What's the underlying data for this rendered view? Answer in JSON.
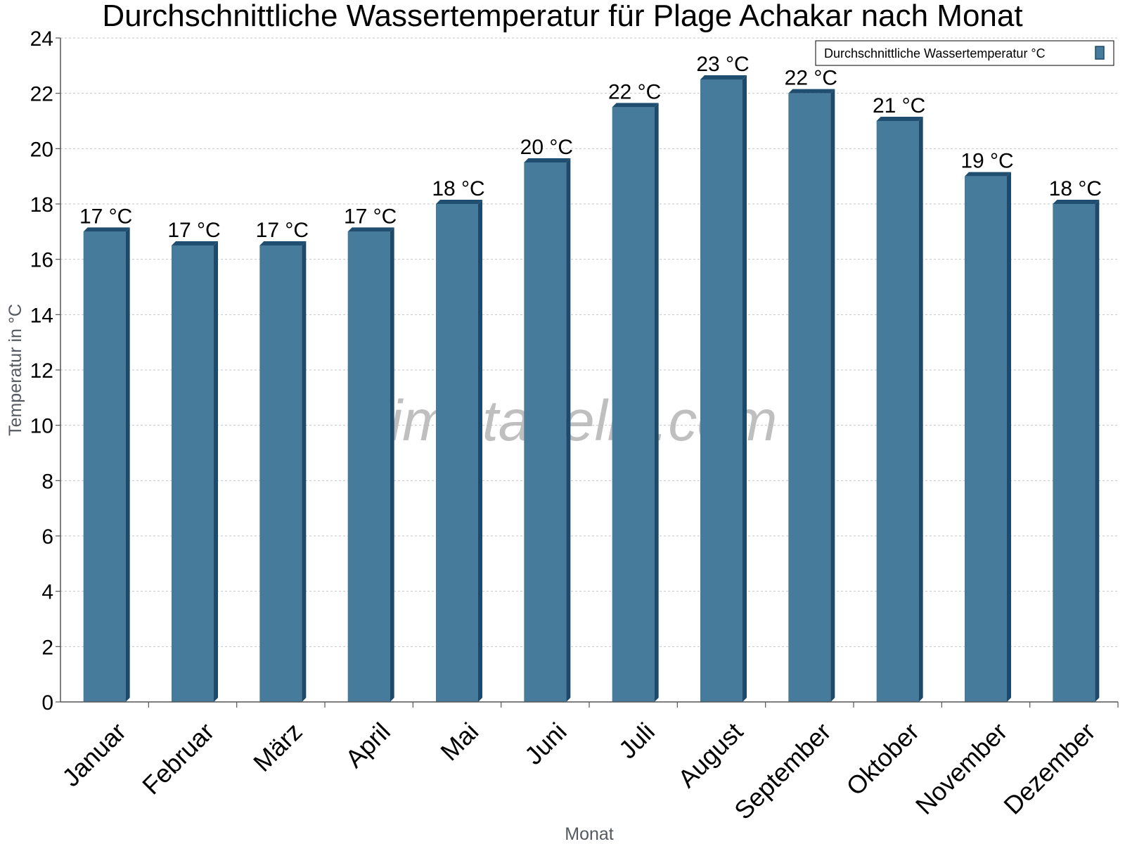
{
  "chart_data": {
    "type": "bar",
    "title": "Durchschnittliche Wassertemperatur für Plage Achakar nach Monat",
    "xlabel": "Monat",
    "ylabel": "Temperatur in °C",
    "ylim": [
      0,
      24
    ],
    "yticks": [
      "0",
      "2",
      "4",
      "6",
      "8",
      "10",
      "12",
      "14",
      "16",
      "18",
      "20",
      "22",
      "24"
    ],
    "grid": true,
    "legend_position": "top-right",
    "categories": [
      "Januar",
      "Februar",
      "März",
      "April",
      "Mai",
      "Juni",
      "Juli",
      "August",
      "September",
      "Oktober",
      "November",
      "Dezember"
    ],
    "series": [
      {
        "name": "Durchschnittliche Wassertemperatur °C",
        "color": "#467b9c",
        "values": [
          17,
          16.5,
          16.5,
          17,
          18,
          19.5,
          21.5,
          22.5,
          22,
          21,
          19,
          18
        ],
        "labels": [
          "17 °C",
          "17 °C",
          "17 °C",
          "17 °C",
          "18 °C",
          "20 °C",
          "22 °C",
          "23 °C",
          "22 °C",
          "21 °C",
          "19 °C",
          "18 °C"
        ]
      }
    ]
  },
  "watermark": "klimatabelle.com",
  "colors": {
    "bar_front": "#467b9c",
    "bar_side": "#1d4a6b",
    "bar_top": "#1f4e70"
  }
}
